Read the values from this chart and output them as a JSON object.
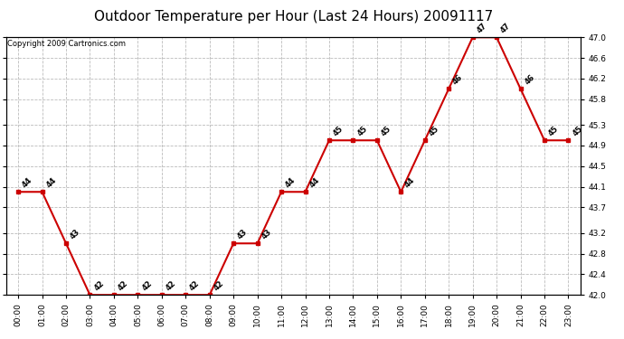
{
  "title": "Outdoor Temperature per Hour (Last 24 Hours) 20091117",
  "copyright": "Copyright 2009 Cartronics.com",
  "hours": [
    "00:00",
    "01:00",
    "02:00",
    "03:00",
    "04:00",
    "05:00",
    "06:00",
    "07:00",
    "08:00",
    "09:00",
    "10:00",
    "11:00",
    "12:00",
    "13:00",
    "14:00",
    "15:00",
    "16:00",
    "17:00",
    "18:00",
    "19:00",
    "20:00",
    "21:00",
    "22:00",
    "23:00"
  ],
  "temps": [
    44,
    44,
    43,
    42,
    42,
    42,
    42,
    42,
    42,
    43,
    43,
    44,
    44,
    45,
    45,
    45,
    44,
    45,
    46,
    47,
    47,
    46,
    45,
    45
  ],
  "ylim_min": 42.0,
  "ylim_max": 47.0,
  "yticks": [
    42.0,
    42.4,
    42.8,
    43.2,
    43.7,
    44.1,
    44.5,
    44.9,
    45.3,
    45.8,
    46.2,
    46.6,
    47.0
  ],
  "line_color": "#cc0000",
  "marker_color": "#cc0000",
  "bg_color": "#ffffff",
  "grid_color": "#bbbbbb",
  "title_fontsize": 11,
  "label_fontsize": 6.5,
  "copyright_fontsize": 6
}
